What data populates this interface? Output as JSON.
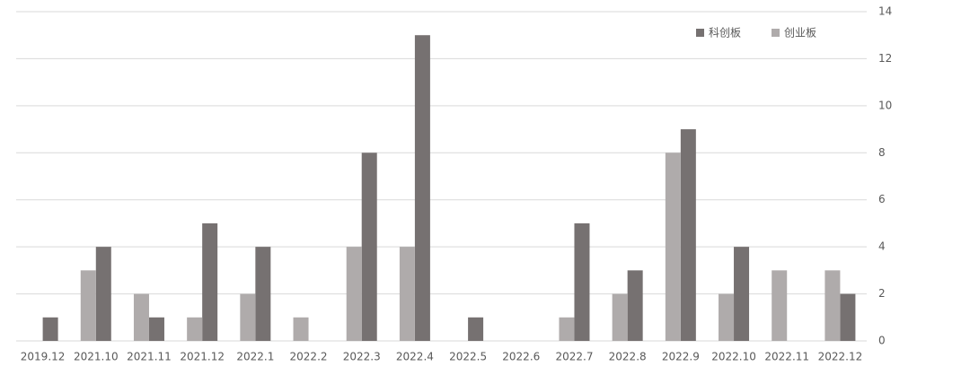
{
  "chart_data": {
    "type": "bar",
    "categories": [
      "2019.12",
      "2021.10",
      "2021.11",
      "2021.12",
      "2022.1",
      "2022.2",
      "2022.3",
      "2022.4",
      "2022.5",
      "2022.6",
      "2022.7",
      "2022.8",
      "2022.9",
      "2022.10",
      "2022.11",
      "2022.12"
    ],
    "series": [
      {
        "name": "科创板",
        "color": "#767171",
        "values": [
          1,
          4,
          1,
          5,
          4,
          0,
          8,
          13,
          1,
          0,
          5,
          3,
          9,
          4,
          0,
          2
        ]
      },
      {
        "name": "创业板",
        "color": "#afabab",
        "values": [
          0,
          3,
          2,
          1,
          2,
          1,
          4,
          4,
          0,
          0,
          1,
          2,
          8,
          2,
          3,
          3
        ]
      }
    ],
    "ylim": [
      0,
      14
    ],
    "yticks": [
      0,
      2,
      4,
      6,
      8,
      10,
      12,
      14
    ],
    "grid": true,
    "legend": "top-right"
  }
}
